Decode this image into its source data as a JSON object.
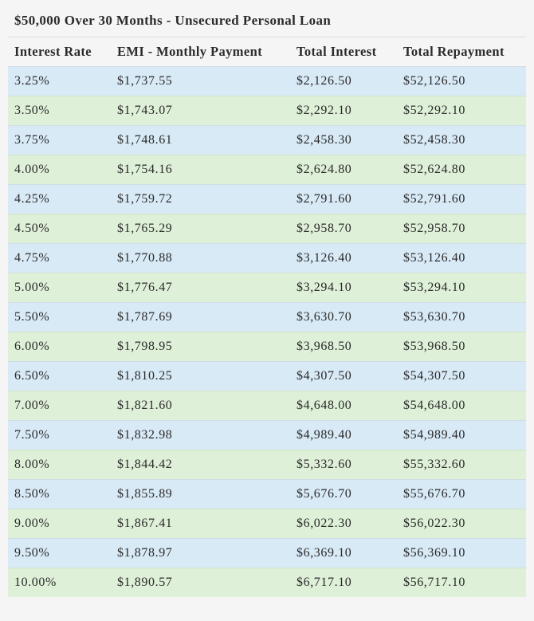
{
  "caption": "$50,000 Over 30 Months - Unsecured Personal Loan",
  "colors": {
    "page_background": "#f5f5f5",
    "row_blue": "#d9eaf7",
    "row_green": "#dff0d8"
  },
  "table": {
    "headers": [
      "Interest Rate",
      "EMI - Monthly Payment",
      "Total Interest",
      "Total Repayment"
    ],
    "rows": [
      [
        "3.25%",
        "$1,737.55",
        "$2,126.50",
        "$52,126.50"
      ],
      [
        "3.50%",
        "$1,743.07",
        "$2,292.10",
        "$52,292.10"
      ],
      [
        "3.75%",
        "$1,748.61",
        "$2,458.30",
        "$52,458.30"
      ],
      [
        "4.00%",
        "$1,754.16",
        "$2,624.80",
        "$52,624.80"
      ],
      [
        "4.25%",
        "$1,759.72",
        "$2,791.60",
        "$52,791.60"
      ],
      [
        "4.50%",
        "$1,765.29",
        "$2,958.70",
        "$52,958.70"
      ],
      [
        "4.75%",
        "$1,770.88",
        "$3,126.40",
        "$53,126.40"
      ],
      [
        "5.00%",
        "$1,776.47",
        "$3,294.10",
        "$53,294.10"
      ],
      [
        "5.50%",
        "$1,787.69",
        "$3,630.70",
        "$53,630.70"
      ],
      [
        "6.00%",
        "$1,798.95",
        "$3,968.50",
        "$53,968.50"
      ],
      [
        "6.50%",
        "$1,810.25",
        "$4,307.50",
        "$54,307.50"
      ],
      [
        "7.00%",
        "$1,821.60",
        "$4,648.00",
        "$54,648.00"
      ],
      [
        "7.50%",
        "$1,832.98",
        "$4,989.40",
        "$54,989.40"
      ],
      [
        "8.00%",
        "$1,844.42",
        "$5,332.60",
        "$55,332.60"
      ],
      [
        "8.50%",
        "$1,855.89",
        "$5,676.70",
        "$55,676.70"
      ],
      [
        "9.00%",
        "$1,867.41",
        "$6,022.30",
        "$56,022.30"
      ],
      [
        "9.50%",
        "$1,878.97",
        "$6,369.10",
        "$56,369.10"
      ],
      [
        "10.00%",
        "$1,890.57",
        "$6,717.10",
        "$56,717.10"
      ]
    ]
  }
}
